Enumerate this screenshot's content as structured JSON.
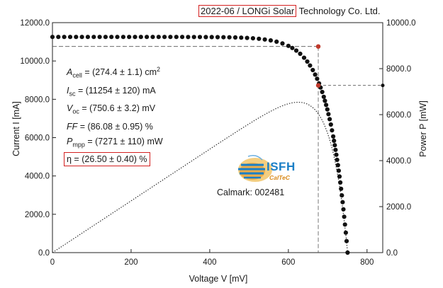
{
  "header": {
    "boxed_text": "2022-06 / LONGi Solar",
    "rest_text": " Technology Co. Ltd."
  },
  "parameters": [
    {
      "sym": "A",
      "sub": "cell",
      "text": " = (274.4 ± 1.1) cm",
      "sup": "2",
      "italic": true,
      "boxed": false
    },
    {
      "sym": "I",
      "sub": "sc",
      "text": " = (11254 ± 120) mA",
      "sup": "",
      "italic": true,
      "boxed": false
    },
    {
      "sym": "V",
      "sub": "oc",
      "text": " = (750.6 ± 3.2) mV",
      "sup": "",
      "italic": true,
      "boxed": false
    },
    {
      "sym": "FF",
      "sub": "",
      "text": " = (86.08 ± 0.95) %",
      "sup": "",
      "italic": true,
      "boxed": false
    },
    {
      "sym": "P",
      "sub": "mpp",
      "text": " = (7271 ± 110) mW",
      "sup": "",
      "italic": true,
      "boxed": false
    },
    {
      "sym": "η",
      "sub": "",
      "text": " = (26.50 ± 0.40) %",
      "sup": "",
      "italic": false,
      "boxed": true
    }
  ],
  "logo": {
    "text": "ISFH",
    "subtext": "CalTeC"
  },
  "calmark": "Calmark: 002481",
  "colors": {
    "points": "#111111",
    "mpp_marker": "#c0392b",
    "highlight_box": "#d42020",
    "logo_blue": "#1b7fc6",
    "logo_orange": "#e8a23a"
  },
  "chart_data": {
    "type": "scatter",
    "title": "",
    "xlabel": "Voltage V [mV]",
    "ylabel_left": "Current I [mA]",
    "ylabel_right": "Power P [mW]",
    "xlim": [
      0,
      840
    ],
    "ylim_left": [
      0,
      12000
    ],
    "ylim_right": [
      0,
      10000
    ],
    "x_ticks": [
      "0",
      "200",
      "400",
      "600",
      "800"
    ],
    "y_left_ticks": [
      "0.0",
      "2000.0",
      "4000.0",
      "6000.0",
      "8000.0",
      "10000.0",
      "12000.0"
    ],
    "y_right_ticks": [
      "0.0",
      "2000.0",
      "4000.0",
      "6000.0",
      "8000.0",
      "10000.0"
    ],
    "grid": false,
    "iv_params": {
      "isc": 11254,
      "voc": 750.6,
      "n_vt": 47.3
    },
    "iv_voltages": [
      0,
      15,
      30,
      45,
      60,
      75,
      90,
      105,
      120,
      135,
      150,
      165,
      180,
      195,
      210,
      225,
      240,
      255,
      270,
      285,
      300,
      315,
      330,
      345,
      360,
      375,
      390,
      405,
      420,
      435,
      450,
      465,
      480,
      495,
      510,
      525,
      540,
      555,
      570,
      585,
      600,
      610,
      620,
      630,
      640,
      648,
      655,
      662,
      668,
      673,
      678,
      682,
      686,
      690,
      693,
      696,
      699,
      702,
      705,
      708,
      711,
      714,
      716,
      718,
      720,
      722,
      724,
      726,
      728,
      730,
      732,
      734,
      736,
      738,
      740,
      742,
      744,
      746,
      748,
      750.6
    ],
    "mpp": {
      "voltage": 676,
      "current": 10756,
      "power": 7271
    },
    "voc_marker_power": 7271
  }
}
